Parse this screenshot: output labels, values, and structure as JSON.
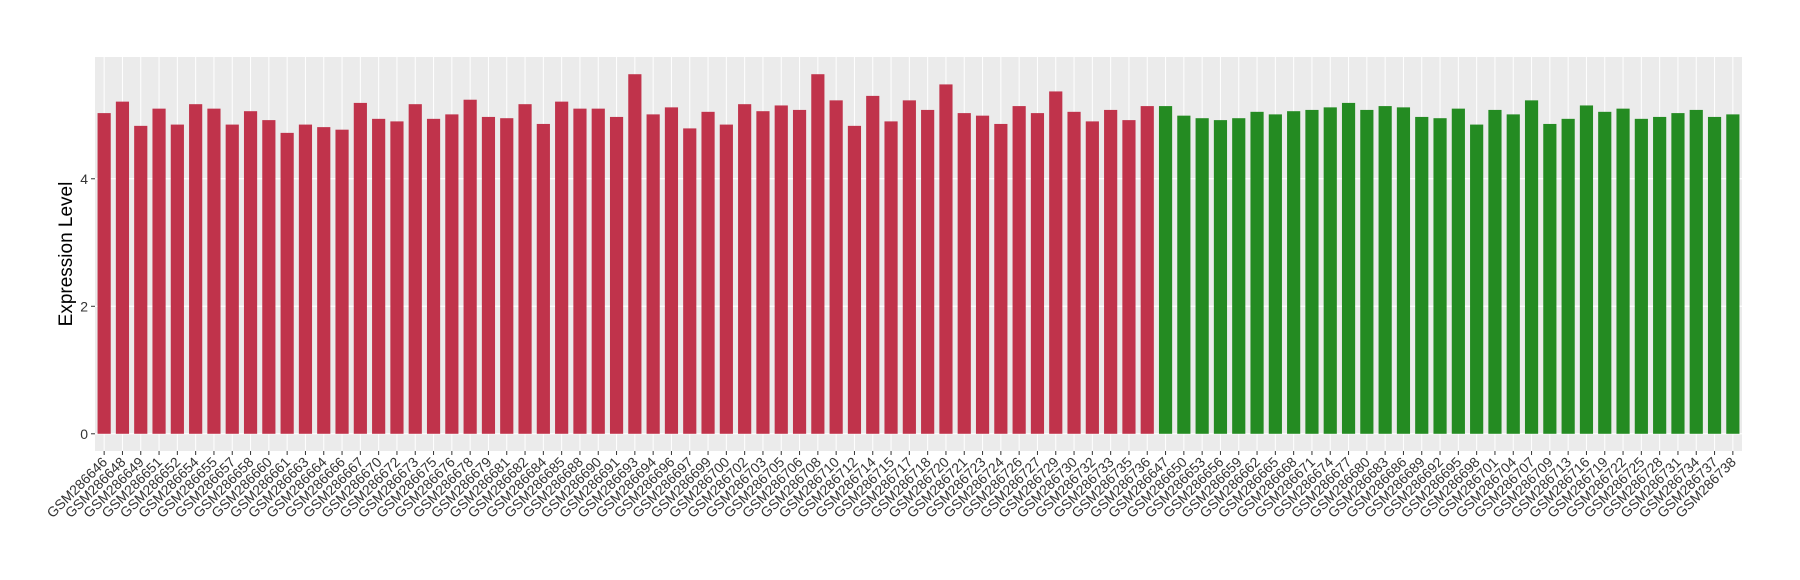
{
  "chart_data": {
    "type": "bar",
    "y_label": "Expression Level",
    "categories": [
      "GSM286646",
      "GSM286648",
      "GSM286649",
      "GSM286651",
      "GSM286652",
      "GSM286654",
      "GSM286655",
      "GSM286657",
      "GSM286658",
      "GSM286660",
      "GSM286661",
      "GSM286663",
      "GSM286664",
      "GSM286666",
      "GSM286667",
      "GSM286670",
      "GSM286672",
      "GSM286673",
      "GSM286675",
      "GSM286676",
      "GSM286678",
      "GSM286679",
      "GSM286681",
      "GSM286682",
      "GSM286684",
      "GSM286685",
      "GSM286688",
      "GSM286690",
      "GSM286691",
      "GSM286693",
      "GSM286694",
      "GSM286696",
      "GSM286697",
      "GSM286699",
      "GSM286700",
      "GSM286702",
      "GSM286703",
      "GSM286705",
      "GSM286706",
      "GSM286708",
      "GSM286710",
      "GSM286712",
      "GSM286714",
      "GSM286715",
      "GSM286717",
      "GSM286718",
      "GSM286720",
      "GSM286721",
      "GSM286723",
      "GSM286724",
      "GSM286726",
      "GSM286727",
      "GSM286729",
      "GSM286730",
      "GSM286732",
      "GSM286733",
      "GSM286735",
      "GSM286736",
      "GSM286647",
      "GSM286650",
      "GSM286653",
      "GSM286656",
      "GSM286659",
      "GSM286662",
      "GSM286665",
      "GSM286668",
      "GSM286671",
      "GSM286674",
      "GSM286677",
      "GSM286680",
      "GSM286683",
      "GSM286686",
      "GSM286689",
      "GSM286692",
      "GSM286695",
      "GSM286698",
      "GSM286701",
      "GSM286704",
      "GSM286707",
      "GSM286709",
      "GSM286713",
      "GSM286716",
      "GSM286719",
      "GSM286722",
      "GSM286725",
      "GSM286728",
      "GSM286731",
      "GSM286734",
      "GSM286737",
      "GSM286738"
    ],
    "values": [
      5.03,
      5.21,
      4.83,
      5.1,
      4.85,
      5.17,
      5.1,
      4.85,
      5.06,
      4.92,
      4.72,
      4.85,
      4.81,
      4.77,
      5.19,
      4.94,
      4.9,
      5.17,
      4.94,
      5.01,
      5.24,
      4.97,
      4.95,
      5.17,
      4.86,
      5.21,
      5.1,
      5.1,
      4.97,
      5.64,
      5.01,
      5.12,
      4.79,
      5.05,
      4.85,
      5.17,
      5.06,
      5.15,
      5.08,
      5.64,
      5.23,
      4.83,
      5.3,
      4.9,
      5.23,
      5.08,
      5.48,
      5.03,
      4.99,
      4.86,
      5.14,
      5.03,
      5.37,
      5.05,
      4.9,
      5.08,
      4.92,
      5.14,
      5.14,
      4.99,
      4.95,
      4.92,
      4.95,
      5.05,
      5.01,
      5.06,
      5.08,
      5.12,
      5.19,
      5.08,
      5.14,
      5.12,
      4.97,
      4.95,
      5.1,
      4.85,
      5.08,
      5.01,
      5.23,
      4.86,
      4.94,
      5.15,
      5.05,
      5.1,
      4.94,
      4.97,
      5.03,
      5.08,
      4.97,
      5.01
    ],
    "colors": [
      "#c0334b",
      "#c0334b",
      "#c0334b",
      "#c0334b",
      "#c0334b",
      "#c0334b",
      "#c0334b",
      "#c0334b",
      "#c0334b",
      "#c0334b",
      "#c0334b",
      "#c0334b",
      "#c0334b",
      "#c0334b",
      "#c0334b",
      "#c0334b",
      "#c0334b",
      "#c0334b",
      "#c0334b",
      "#c0334b",
      "#c0334b",
      "#c0334b",
      "#c0334b",
      "#c0334b",
      "#c0334b",
      "#c0334b",
      "#c0334b",
      "#c0334b",
      "#c0334b",
      "#c0334b",
      "#c0334b",
      "#c0334b",
      "#c0334b",
      "#c0334b",
      "#c0334b",
      "#c0334b",
      "#c0334b",
      "#c0334b",
      "#c0334b",
      "#c0334b",
      "#c0334b",
      "#c0334b",
      "#c0334b",
      "#c0334b",
      "#c0334b",
      "#c0334b",
      "#c0334b",
      "#c0334b",
      "#c0334b",
      "#c0334b",
      "#c0334b",
      "#c0334b",
      "#c0334b",
      "#c0334b",
      "#c0334b",
      "#c0334b",
      "#c0334b",
      "#c0334b",
      "#248b22",
      "#248b22",
      "#248b22",
      "#248b22",
      "#248b22",
      "#248b22",
      "#248b22",
      "#248b22",
      "#248b22",
      "#248b22",
      "#248b22",
      "#248b22",
      "#248b22",
      "#248b22",
      "#248b22",
      "#248b22",
      "#248b22",
      "#248b22",
      "#248b22",
      "#248b22",
      "#248b22",
      "#248b22",
      "#248b22",
      "#248b22",
      "#248b22",
      "#248b22",
      "#248b22",
      "#248b22",
      "#248b22",
      "#248b22",
      "#248b22",
      "#248b22"
    ],
    "ylim": [
      -0.27,
      5.91
    ],
    "yticks": [
      0,
      2,
      4
    ],
    "grid": true
  }
}
